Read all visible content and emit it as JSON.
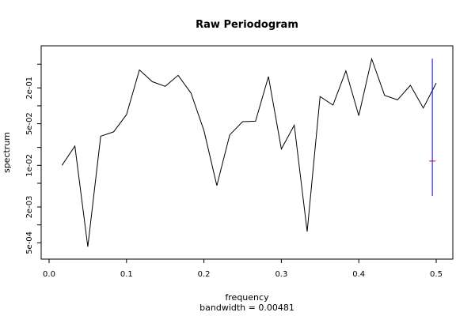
{
  "chart_data": {
    "type": "line",
    "title": "Raw Periodogram",
    "xlabel": "frequency",
    "ylabel": "spectrum",
    "subtitle": "bandwidth = 0.00481",
    "x_scale": "linear",
    "y_scale": "log",
    "xlim": [
      0.0,
      0.5
    ],
    "ylim": [
      0.00034,
      0.9
    ],
    "x_ticks": [
      0.0,
      0.1,
      0.2,
      0.3,
      0.4,
      0.5
    ],
    "x_tick_labels": [
      "0.0",
      "0.1",
      "0.2",
      "0.3",
      "0.4",
      "0.5"
    ],
    "y_ticks": [
      0.0005,
      0.002,
      0.01,
      0.05,
      0.2
    ],
    "y_tick_labels": [
      "5e-04",
      "2e-03",
      "1e-02",
      "5e-02",
      "2e-01"
    ],
    "y_minor_ticks": [
      0.001,
      0.005,
      0.02,
      0.1,
      0.5
    ],
    "series": [
      {
        "color": "#000000",
        "x": [
          0.0167,
          0.0333,
          0.05,
          0.0667,
          0.0833,
          0.1,
          0.1167,
          0.1333,
          0.15,
          0.1667,
          0.1833,
          0.2,
          0.2167,
          0.2333,
          0.25,
          0.2667,
          0.2833,
          0.3,
          0.3167,
          0.3333,
          0.35,
          0.3667,
          0.3833,
          0.4,
          0.4167,
          0.4333,
          0.45,
          0.4667,
          0.4833,
          0.5
        ],
        "y": [
          0.01,
          0.0211,
          0.00043,
          0.0309,
          0.0365,
          0.0711,
          0.4,
          0.254,
          0.212,
          0.325,
          0.163,
          0.0385,
          0.00457,
          0.0325,
          0.0542,
          0.0552,
          0.31,
          0.0188,
          0.0472,
          0.00077,
          0.143,
          0.103,
          0.386,
          0.0683,
          0.615,
          0.15,
          0.126,
          0.221,
          0.0919,
          0.241
        ]
      }
    ],
    "ci_bar": {
      "color": "#0000ff",
      "x": 0.495,
      "y_low": 0.00306,
      "y_high": 0.62,
      "y_center": 0.0118
    }
  }
}
